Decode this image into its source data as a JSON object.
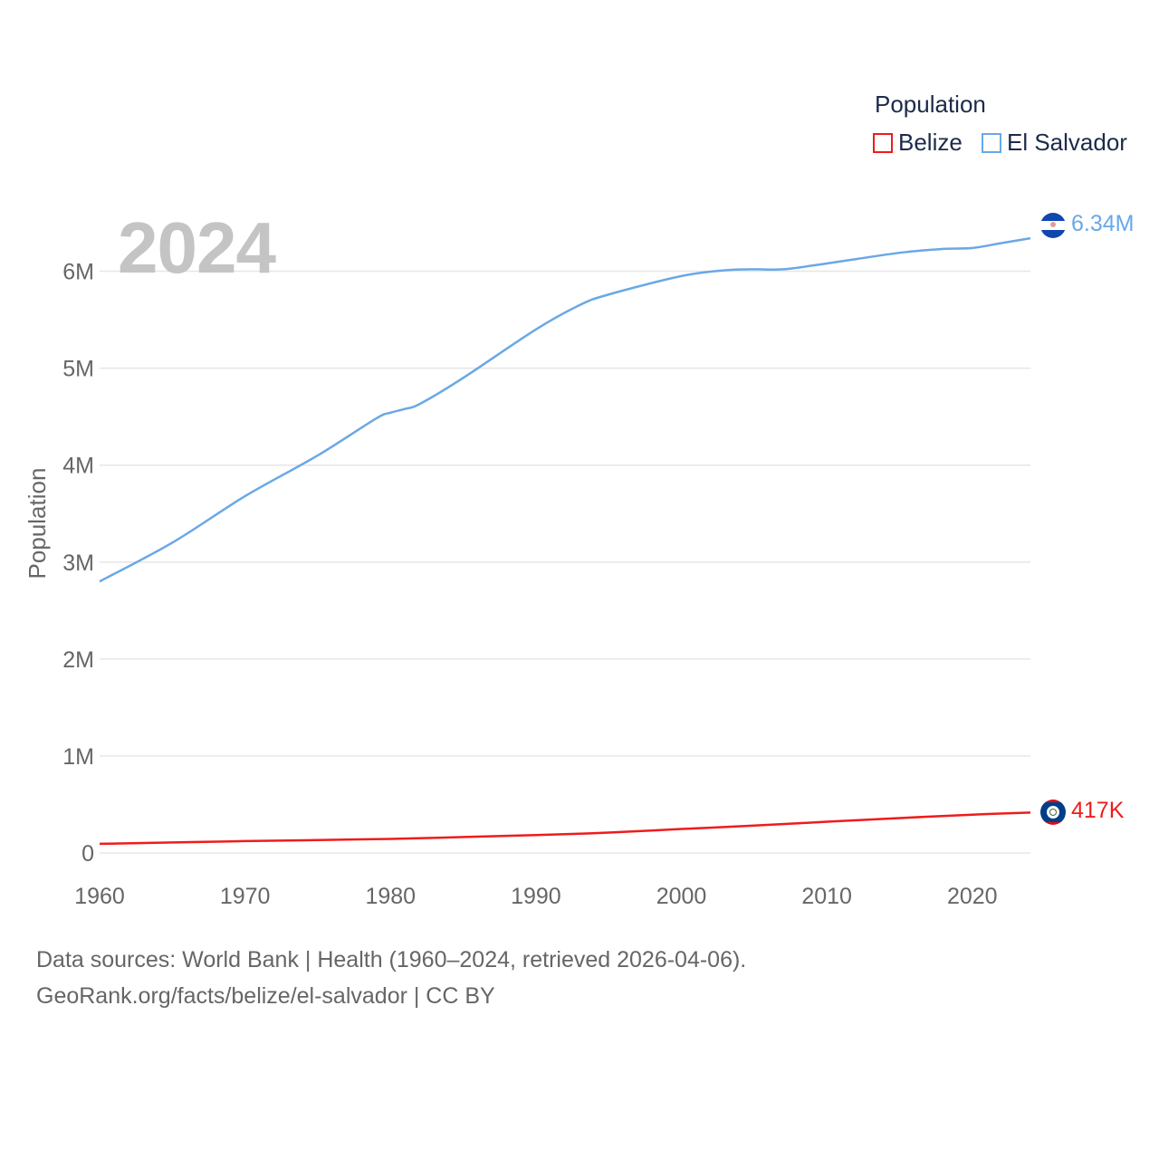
{
  "legend": {
    "title": "Population",
    "items": [
      {
        "label": "Belize",
        "color": "#ee1c1c"
      },
      {
        "label": "El Salvador",
        "color": "#6aa8e6"
      }
    ]
  },
  "year_badge": "2024",
  "footer": {
    "line1": "Data sources: World Bank | Health (1960–2024, retrieved 2026-04-06).",
    "line2": "GeoRank.org/facts/belize/el-salvador | CC BY"
  },
  "end_labels": {
    "el_salvador": "6.34M",
    "belize": "417K"
  },
  "chart_data": {
    "type": "line",
    "title": "",
    "xlabel": "",
    "ylabel": "Population",
    "xlim": [
      1960,
      2024
    ],
    "ylim": [
      0,
      6500000
    ],
    "x_ticks": [
      1960,
      1970,
      1980,
      1990,
      2000,
      2010,
      2020
    ],
    "y_ticks": [
      0,
      1000000,
      2000000,
      3000000,
      4000000,
      5000000,
      6000000
    ],
    "y_tick_labels": [
      "0",
      "1M",
      "2M",
      "3M",
      "4M",
      "5M",
      "6M"
    ],
    "series": [
      {
        "name": "El Salvador",
        "color": "#6aa8e6",
        "x": [
          1960,
          1965,
          1970,
          1975,
          1979,
          1980,
          1981,
          1982,
          1985,
          1990,
          1993,
          1995,
          2000,
          2003,
          2005,
          2007,
          2010,
          2015,
          2018,
          2020,
          2022,
          2024
        ],
        "y": [
          2800000,
          3200000,
          3680000,
          4100000,
          4480000,
          4540000,
          4580000,
          4630000,
          4900000,
          5400000,
          5650000,
          5760000,
          5950000,
          6010000,
          6020000,
          6020000,
          6080000,
          6190000,
          6230000,
          6240000,
          6290000,
          6340000
        ]
      },
      {
        "name": "Belize",
        "color": "#ee1c1c",
        "x": [
          1960,
          1970,
          1980,
          1990,
          1995,
          2000,
          2005,
          2010,
          2015,
          2020,
          2024
        ],
        "y": [
          94000,
          122000,
          145000,
          185000,
          210000,
          247000,
          282000,
          322000,
          360000,
          395000,
          417000
        ]
      }
    ]
  }
}
